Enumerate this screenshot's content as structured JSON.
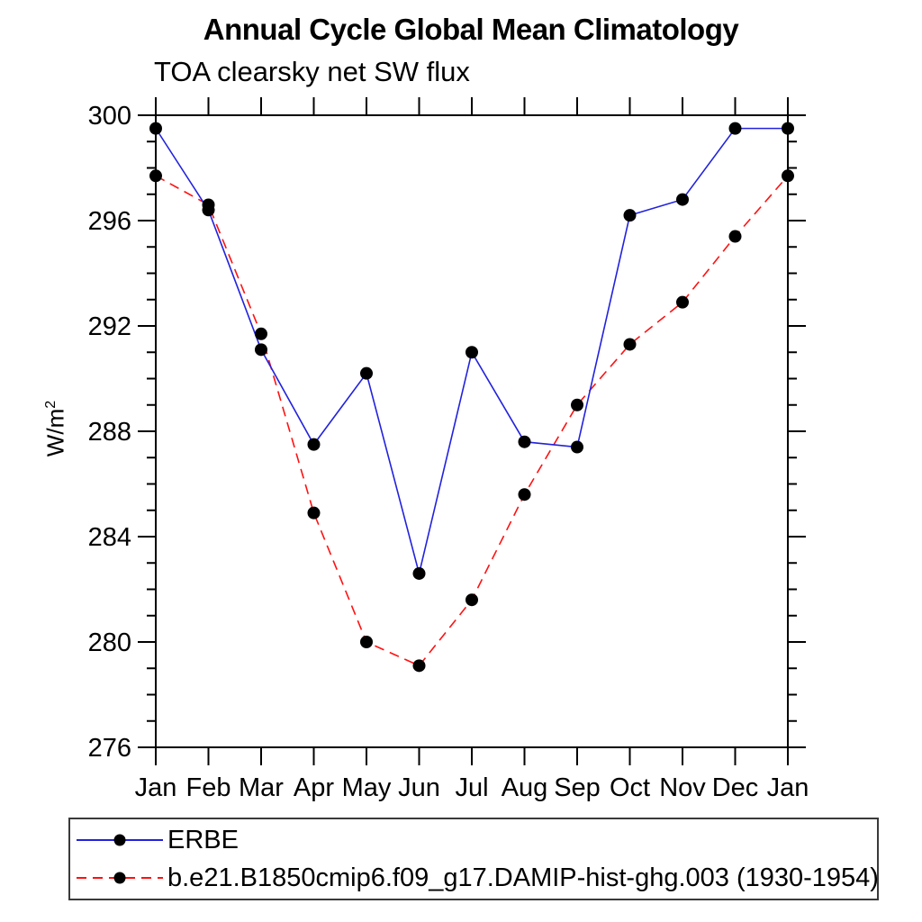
{
  "chart_data": {
    "type": "line",
    "title": "Annual Cycle Global Mean Climatology",
    "subtitle": "TOA clearsky net SW flux",
    "ylabel": "W/m2",
    "ylabel_base": "W/m",
    "ylabel_exponent": "2",
    "xlabel": "",
    "categories": [
      "Jan",
      "Feb",
      "Mar",
      "Apr",
      "May",
      "Jun",
      "Jul",
      "Aug",
      "Sep",
      "Oct",
      "Nov",
      "Dec",
      "Jan"
    ],
    "ylim": [
      276,
      300
    ],
    "ytick_major": [
      276,
      280,
      284,
      288,
      292,
      296,
      300
    ],
    "ytick_minor_interval": 1,
    "grid": false,
    "legend_position": "bottom",
    "marker": "filled-circle",
    "marker_color": "#000000",
    "axis_color": "#000000",
    "series": [
      {
        "name": "ERBE",
        "color": "#2222dd",
        "line_style": "solid",
        "values": [
          299.5,
          296.4,
          291.1,
          287.5,
          290.2,
          282.6,
          291.0,
          287.6,
          287.4,
          296.2,
          296.8,
          299.5,
          299.5
        ]
      },
      {
        "name": "b.e21.B1850cmip6.f09_g17.DAMIP-hist-ghg.003 (1930-1954)",
        "color": "#ff1111",
        "line_style": "dashed",
        "values": [
          297.7,
          296.6,
          291.7,
          284.9,
          280.0,
          279.1,
          281.6,
          285.6,
          289.0,
          291.3,
          292.9,
          295.4,
          297.7
        ]
      }
    ]
  }
}
